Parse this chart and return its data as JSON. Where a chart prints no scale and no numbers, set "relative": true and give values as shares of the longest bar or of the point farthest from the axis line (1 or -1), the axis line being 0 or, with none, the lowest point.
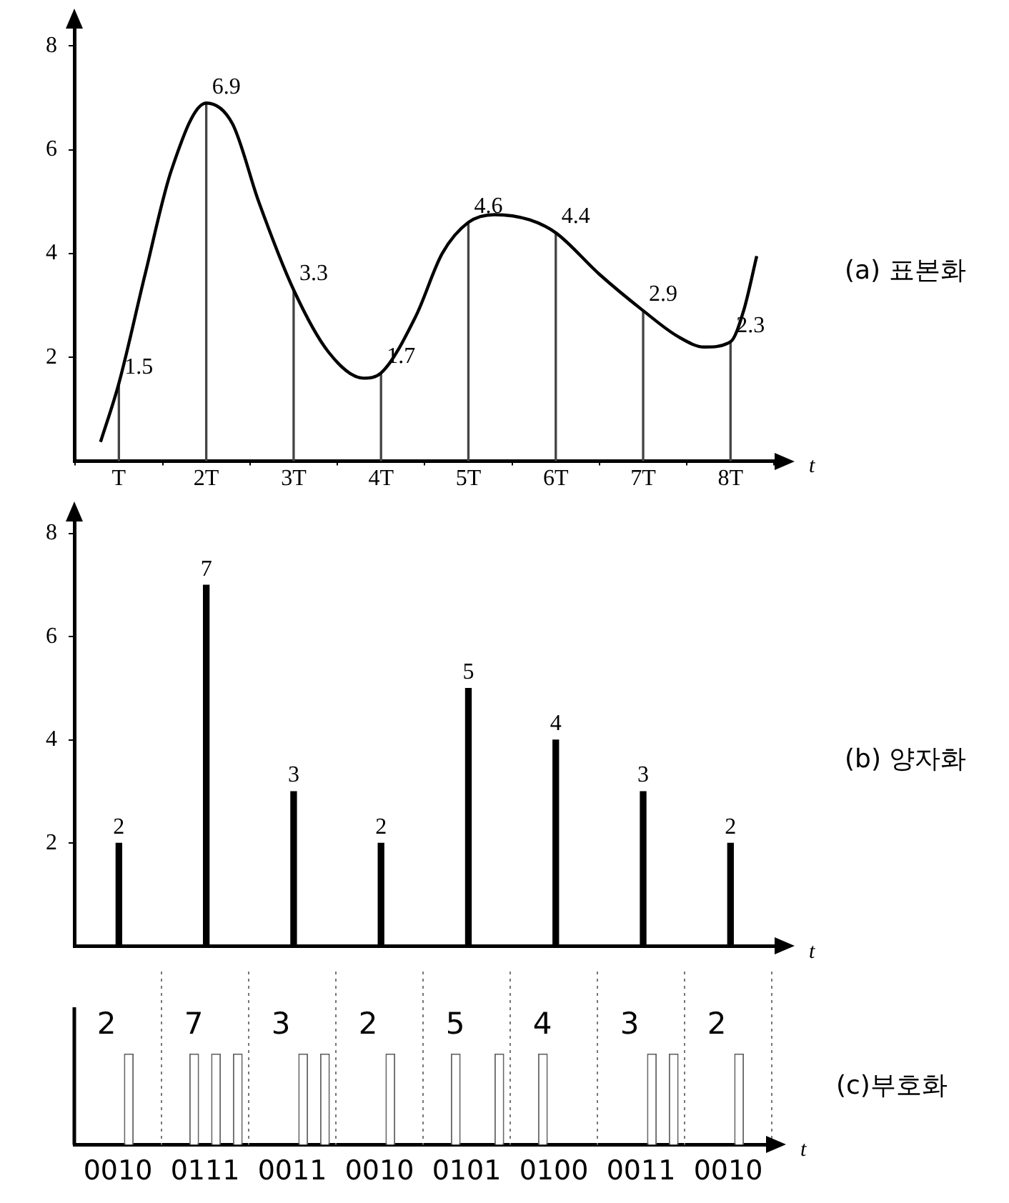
{
  "chart_data": [
    {
      "type": "line",
      "xlabel": "t",
      "xlim": [
        0.49,
        8.57
      ],
      "xticks": [
        {
          "value": 1,
          "label": "T"
        },
        {
          "value": 2,
          "label": "2T"
        },
        {
          "value": 3,
          "label": "3T"
        },
        {
          "value": 4,
          "label": "4T"
        },
        {
          "value": 5,
          "label": "5T"
        },
        {
          "value": 6,
          "label": "6T"
        },
        {
          "value": 7,
          "label": "7T"
        },
        {
          "value": 8,
          "label": "8T"
        }
      ],
      "ylim": [
        0,
        8.4
      ],
      "yticks": [
        2,
        4,
        6,
        8
      ],
      "grid": false,
      "marker": "none",
      "annotations": [
        "(a) 표본화"
      ],
      "series": [
        {
          "color": "#000000",
          "x": [
            0.79,
            1,
            1.3,
            1.6,
            2,
            2.3,
            2.6,
            3,
            3.4,
            3.8,
            4,
            4.4,
            4.7,
            5,
            5.3,
            5.7,
            6,
            6.5,
            7,
            7.4,
            7.7,
            8,
            8.15,
            8.3
          ],
          "values": [
            0.37,
            1.5,
            3.6,
            5.6,
            6.9,
            6.5,
            5.0,
            3.3,
            2.1,
            1.6,
            1.7,
            2.8,
            4.0,
            4.6,
            4.75,
            4.65,
            4.4,
            3.6,
            2.9,
            2.4,
            2.2,
            2.3,
            2.9,
            3.95
          ]
        },
        {
          "type": "bar",
          "color": "#444444",
          "x": [
            1,
            2,
            3,
            4,
            5,
            6,
            7,
            8
          ],
          "values": [
            1.5,
            6.9,
            3.3,
            1.7,
            4.6,
            4.4,
            2.9,
            2.3
          ],
          "value_labels": [
            "1.5",
            "6.9",
            "3.3",
            "1.7",
            "4.6",
            "4.4",
            "2.9",
            "2.3"
          ]
        }
      ]
    },
    {
      "type": "bar",
      "xlabel": "t",
      "x": [
        1,
        2,
        3,
        4,
        5,
        6,
        7,
        8
      ],
      "values": [
        2,
        7,
        3,
        2,
        5,
        4,
        3,
        2
      ],
      "color": "#000000",
      "data_labels": true,
      "xlim": [
        0.49,
        8.57
      ],
      "ylim": [
        0,
        8.3
      ],
      "yticks": [
        2,
        4,
        6,
        8
      ],
      "tick_labels": "y",
      "grid": false,
      "annotations": [
        "(b) 양자화"
      ]
    },
    {
      "type": "bar",
      "relative": true,
      "xlabel": "t",
      "categories": [
        "0010",
        "0111",
        "0011",
        "0010",
        "0101",
        "0100",
        "0011",
        "0010"
      ],
      "grid": "x",
      "series": [
        {
          "color": "#ffffff",
          "values": [
            0,
            0,
            0,
            0,
            0,
            0,
            0,
            0
          ]
        },
        {
          "color": "#ffffff",
          "values": [
            0,
            1,
            0,
            0,
            1,
            1,
            0,
            0
          ]
        },
        {
          "color": "#ffffff",
          "values": [
            1,
            1,
            1,
            1,
            0,
            0,
            1,
            1
          ]
        },
        {
          "color": "#ffffff",
          "values": [
            0,
            1,
            1,
            0,
            1,
            0,
            1,
            0
          ]
        }
      ],
      "annotations": [
        "2",
        "7",
        "3",
        "2",
        "5",
        "4",
        "3",
        "2",
        "(c)부호화"
      ]
    }
  ]
}
